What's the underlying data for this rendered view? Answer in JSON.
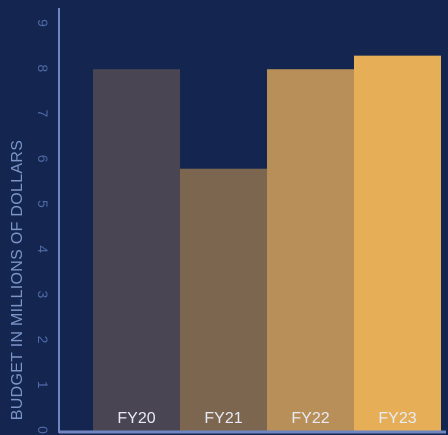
{
  "colors": {
    "background": "#14264f",
    "axis": "#6f86c0",
    "tick_text": "#4f6aa8",
    "ylabel": "#7c94c8",
    "category_text": "#e6ebf5"
  },
  "chart_data": {
    "type": "bar",
    "title": "",
    "xlabel": "",
    "ylabel": "BUDGET IN MILLIONS OF DOLLARS",
    "categories": [
      "FY20",
      "FY21",
      "FY22",
      "FY23"
    ],
    "values": [
      8.0,
      5.8,
      8.0,
      8.3
    ],
    "bar_colors": [
      "#4a4553",
      "#7d6650",
      "#b88f58",
      "#e7ae58"
    ],
    "ylim": [
      0,
      9
    ],
    "yticks": [
      0,
      1,
      2,
      3,
      4,
      5,
      6,
      7,
      8,
      9
    ],
    "grid": false,
    "legend": "none"
  }
}
